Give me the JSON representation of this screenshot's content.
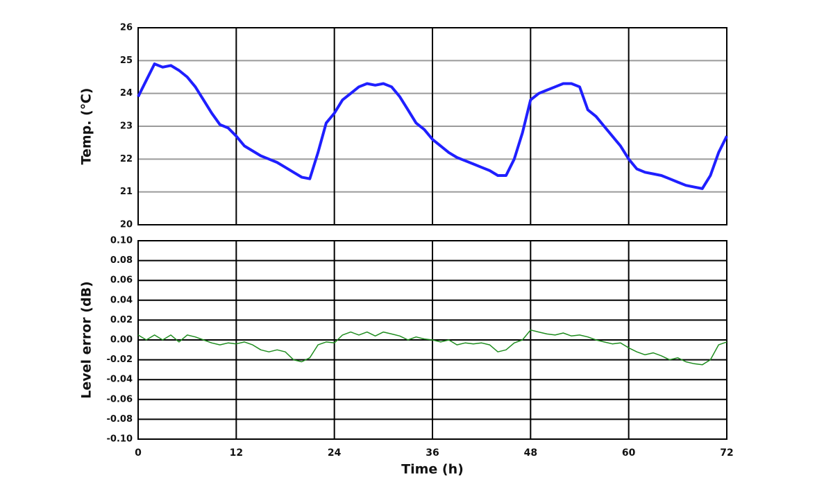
{
  "chart_data": [
    {
      "type": "line",
      "ylabel": "Temp. (℃)",
      "color": "#1f1fff",
      "line_width": 4,
      "x": [
        0,
        1,
        2,
        3,
        4,
        5,
        6,
        7,
        8,
        9,
        10,
        11,
        12,
        13,
        14,
        15,
        16,
        17,
        18,
        19,
        20,
        21,
        22,
        23,
        24,
        25,
        26,
        27,
        28,
        29,
        30,
        31,
        32,
        33,
        34,
        35,
        36,
        37,
        38,
        39,
        40,
        41,
        42,
        43,
        44,
        45,
        46,
        47,
        48,
        49,
        50,
        51,
        52,
        53,
        54,
        55,
        56,
        57,
        58,
        59,
        60,
        61,
        62,
        63,
        64,
        65,
        66,
        67,
        68,
        69,
        70,
        71,
        72
      ],
      "values": [
        23.9,
        24.4,
        24.9,
        24.8,
        24.85,
        24.7,
        24.5,
        24.2,
        23.8,
        23.4,
        23.05,
        22.95,
        22.7,
        22.4,
        22.25,
        22.1,
        22.0,
        21.9,
        21.75,
        21.6,
        21.45,
        21.4,
        22.2,
        23.1,
        23.4,
        23.8,
        24.0,
        24.2,
        24.3,
        24.25,
        24.3,
        24.2,
        23.9,
        23.5,
        23.1,
        22.9,
        22.6,
        22.4,
        22.2,
        22.05,
        21.95,
        21.85,
        21.75,
        21.65,
        21.5,
        21.5,
        22.0,
        22.8,
        23.8,
        24.0,
        24.1,
        24.2,
        24.3,
        24.3,
        24.2,
        23.5,
        23.3,
        23.0,
        22.7,
        22.4,
        22.0,
        21.7,
        21.6,
        21.55,
        21.5,
        21.4,
        21.3,
        21.2,
        21.15,
        21.1,
        21.5,
        22.2,
        22.7
      ],
      "xlim": [
        0,
        72
      ],
      "xticks": [
        0,
        12,
        24,
        36,
        48,
        60,
        72
      ],
      "xtick_labels": false,
      "ylim": [
        20,
        26
      ],
      "yticks": [
        20,
        21,
        22,
        23,
        24,
        25,
        26
      ],
      "grid": true,
      "ygrid_color": "#9a9a9a",
      "xgrid_color": "#000000"
    },
    {
      "type": "line",
      "ylabel": "Level error (dB)",
      "xlabel": "Time (h)",
      "color": "#1e8c1e",
      "line_width": 1.5,
      "x": [
        0,
        1,
        2,
        3,
        4,
        5,
        6,
        7,
        8,
        9,
        10,
        11,
        12,
        13,
        14,
        15,
        16,
        17,
        18,
        19,
        20,
        21,
        22,
        23,
        24,
        25,
        26,
        27,
        28,
        29,
        30,
        31,
        32,
        33,
        34,
        35,
        36,
        37,
        38,
        39,
        40,
        41,
        42,
        43,
        44,
        45,
        46,
        47,
        48,
        49,
        50,
        51,
        52,
        53,
        54,
        55,
        56,
        57,
        58,
        59,
        60,
        61,
        62,
        63,
        64,
        65,
        66,
        67,
        68,
        69,
        70,
        71,
        72
      ],
      "values": [
        0.005,
        0.0,
        0.005,
        0.0,
        0.005,
        -0.002,
        0.005,
        0.003,
        0.0,
        -0.003,
        -0.005,
        -0.003,
        -0.004,
        -0.002,
        -0.005,
        -0.01,
        -0.012,
        -0.01,
        -0.012,
        -0.02,
        -0.022,
        -0.018,
        -0.005,
        -0.002,
        -0.003,
        0.005,
        0.008,
        0.005,
        0.008,
        0.004,
        0.008,
        0.006,
        0.004,
        0.0,
        0.003,
        0.001,
        0.0,
        -0.002,
        0.0,
        -0.005,
        -0.003,
        -0.004,
        -0.003,
        -0.005,
        -0.012,
        -0.01,
        -0.003,
        0.0,
        0.01,
        0.008,
        0.006,
        0.005,
        0.007,
        0.004,
        0.005,
        0.003,
        0.0,
        -0.002,
        -0.004,
        -0.003,
        -0.008,
        -0.012,
        -0.015,
        -0.013,
        -0.016,
        -0.02,
        -0.018,
        -0.022,
        -0.024,
        -0.025,
        -0.02,
        -0.005,
        -0.002
      ],
      "xlim": [
        0,
        72
      ],
      "xticks": [
        0,
        12,
        24,
        36,
        48,
        60,
        72
      ],
      "xtick_labels": true,
      "ylim": [
        -0.1,
        0.1
      ],
      "yticks": [
        {
          "value": -0.1,
          "label": "-0.10"
        },
        -0.08,
        -0.06,
        -0.04,
        -0.02,
        {
          "value": 0,
          "label": "0.00"
        },
        0.02,
        0.04,
        0.06,
        0.08,
        {
          "value": 0.1,
          "label": "0.10"
        }
      ],
      "grid": true,
      "ygrid_color": "#000000",
      "xgrid_color": "#000000"
    }
  ]
}
